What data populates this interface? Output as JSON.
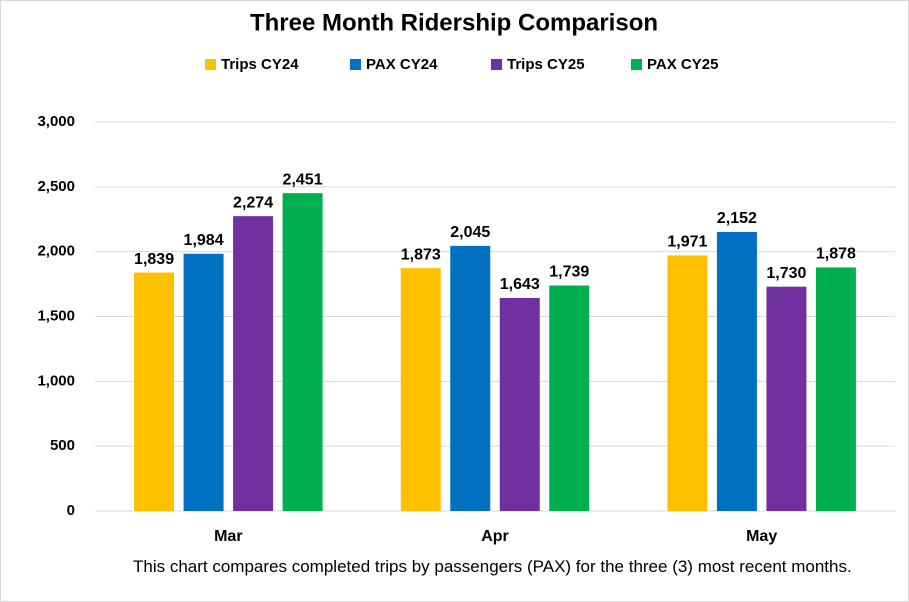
{
  "chart_data": {
    "type": "bar",
    "title": "Three Month Ridership Comparison",
    "categories": [
      "Mar",
      "Apr",
      "May"
    ],
    "series": [
      {
        "name": "Trips CY24",
        "color": "#ffc000",
        "values": [
          1839,
          1873,
          1971
        ],
        "value_labels": [
          "1,839",
          "1,873",
          "1,971"
        ]
      },
      {
        "name": "PAX CY24",
        "color": "#0070c0",
        "values": [
          1984,
          2045,
          2152
        ],
        "value_labels": [
          "1,984",
          "2,045",
          "2,152"
        ]
      },
      {
        "name": "Trips CY25",
        "color": "#7030a0",
        "values": [
          2274,
          1643,
          1730
        ],
        "value_labels": [
          "2,274",
          "1,643",
          "1,730"
        ]
      },
      {
        "name": "PAX CY25",
        "color": "#00b050",
        "values": [
          2451,
          1739,
          1878
        ],
        "value_labels": [
          "2,451",
          "1,739",
          "1,878"
        ]
      }
    ],
    "ylim": [
      0,
      3000
    ],
    "yticks": [
      0,
      500,
      {
        "value": 1000,
        "label": "1,000"
      },
      {
        "value": 1500,
        "label": "1,500"
      },
      {
        "value": 2000,
        "label": "2,000"
      },
      {
        "value": 2500,
        "label": "2,500"
      },
      {
        "value": 3000,
        "label": "3,000"
      }
    ],
    "grid": true,
    "legend": "top",
    "caption": "This chart compares completed trips by passengers (PAX) for the three (3) most recent months."
  }
}
